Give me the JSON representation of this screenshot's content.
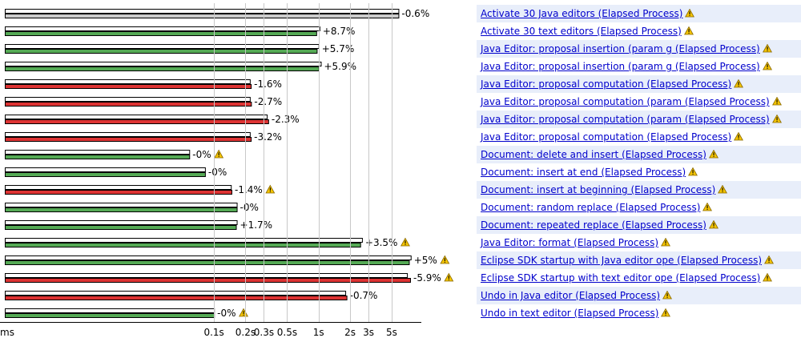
{
  "chart_data": {
    "type": "bar",
    "scale": "log",
    "xaxis_ticks": [
      "ms",
      "0.1s",
      "0.2s",
      "0.3s",
      "0.5s",
      "1s",
      "2s",
      "3s",
      "5s"
    ],
    "tick_values_s": [
      0.001,
      0.1,
      0.2,
      0.3,
      0.5,
      1,
      2,
      3,
      5
    ],
    "colors": {
      "improved": "#55aa55",
      "regressed": "#dd3333",
      "neutral": "#cccccc",
      "baseline": "#ffffff",
      "row_band": "#e8eefa",
      "link": "#0000cc"
    },
    "rows": [
      {
        "label": "Activate 30 Java editors (Elapsed Process)",
        "baseline_s": 5.8,
        "current_s": 5.8,
        "delta": "-0.6%",
        "status": "neutral",
        "delta_warning": false,
        "label_warning": true
      },
      {
        "label": "Activate 30 text editors (Elapsed Process)",
        "baseline_s": 1.02,
        "current_s": 0.95,
        "delta": "+8.7%",
        "status": "improved",
        "delta_warning": false,
        "label_warning": true
      },
      {
        "label": "Java Editor: proposal insertion (param g (Elapsed Process)",
        "baseline_s": 1.0,
        "current_s": 0.96,
        "delta": "+5.7%",
        "status": "improved",
        "delta_warning": false,
        "label_warning": true
      },
      {
        "label": "Java Editor: proposal insertion (param g (Elapsed Process)",
        "baseline_s": 1.05,
        "current_s": 1.0,
        "delta": "+5.9%",
        "status": "improved",
        "delta_warning": false,
        "label_warning": true
      },
      {
        "label": "Java Editor: proposal computation (Elapsed Process)",
        "baseline_s": 0.22,
        "current_s": 0.225,
        "delta": "-1.6%",
        "status": "regressed",
        "delta_warning": false,
        "label_warning": true
      },
      {
        "label": "Java Editor: proposal computation (param (Elapsed Process)",
        "baseline_s": 0.22,
        "current_s": 0.226,
        "delta": "-2.7%",
        "status": "regressed",
        "delta_warning": false,
        "label_warning": true
      },
      {
        "label": "Java Editor: proposal computation (param (Elapsed Process)",
        "baseline_s": 0.32,
        "current_s": 0.33,
        "delta": "-2.3%",
        "status": "regressed",
        "delta_warning": false,
        "label_warning": true
      },
      {
        "label": "Java Editor: proposal computation (Elapsed Process)",
        "baseline_s": 0.22,
        "current_s": 0.225,
        "delta": "-3.2%",
        "status": "regressed",
        "delta_warning": false,
        "label_warning": true
      },
      {
        "label": "Document: delete and insert (Elapsed Process)",
        "baseline_s": 0.058,
        "current_s": 0.058,
        "delta": "-0%",
        "status": "improved",
        "delta_warning": true,
        "label_warning": true
      },
      {
        "label": "Document: insert at end (Elapsed Process)",
        "baseline_s": 0.082,
        "current_s": 0.082,
        "delta": "-0%",
        "status": "improved",
        "delta_warning": false,
        "label_warning": true
      },
      {
        "label": "Document: insert at beginning (Elapsed Process)",
        "baseline_s": 0.145,
        "current_s": 0.147,
        "delta": "-1.4%",
        "status": "regressed",
        "delta_warning": true,
        "label_warning": true
      },
      {
        "label": "Document: random replace (Elapsed Process)",
        "baseline_s": 0.165,
        "current_s": 0.165,
        "delta": "-0%",
        "status": "improved",
        "delta_warning": false,
        "label_warning": true
      },
      {
        "label": "Document: repeated replace (Elapsed Process)",
        "baseline_s": 0.165,
        "current_s": 0.162,
        "delta": "+1.7%",
        "status": "improved",
        "delta_warning": false,
        "label_warning": true
      },
      {
        "label": "Java Editor: format (Elapsed Process)",
        "baseline_s": 2.6,
        "current_s": 2.5,
        "delta": "+3.5%",
        "status": "improved",
        "delta_warning": true,
        "label_warning": true
      },
      {
        "label": "Eclipse SDK startup with Java editor ope (Elapsed Process)",
        "baseline_s": 7.6,
        "current_s": 7.3,
        "delta": "+5%",
        "status": "improved",
        "delta_warning": true,
        "label_warning": true
      },
      {
        "label": "Eclipse SDK startup with text editor ope (Elapsed Process)",
        "baseline_s": 7.0,
        "current_s": 7.5,
        "delta": "-5.9%",
        "status": "regressed",
        "delta_warning": true,
        "label_warning": true
      },
      {
        "label": "Undo in Java editor (Elapsed Process)",
        "baseline_s": 1.8,
        "current_s": 1.85,
        "delta": "-0.7%",
        "status": "regressed",
        "delta_warning": false,
        "label_warning": true
      },
      {
        "label": "Undo in text editor (Elapsed Process)",
        "baseline_s": 0.1,
        "current_s": 0.1,
        "delta": "-0%",
        "status": "improved",
        "delta_warning": true,
        "label_warning": true
      }
    ]
  }
}
